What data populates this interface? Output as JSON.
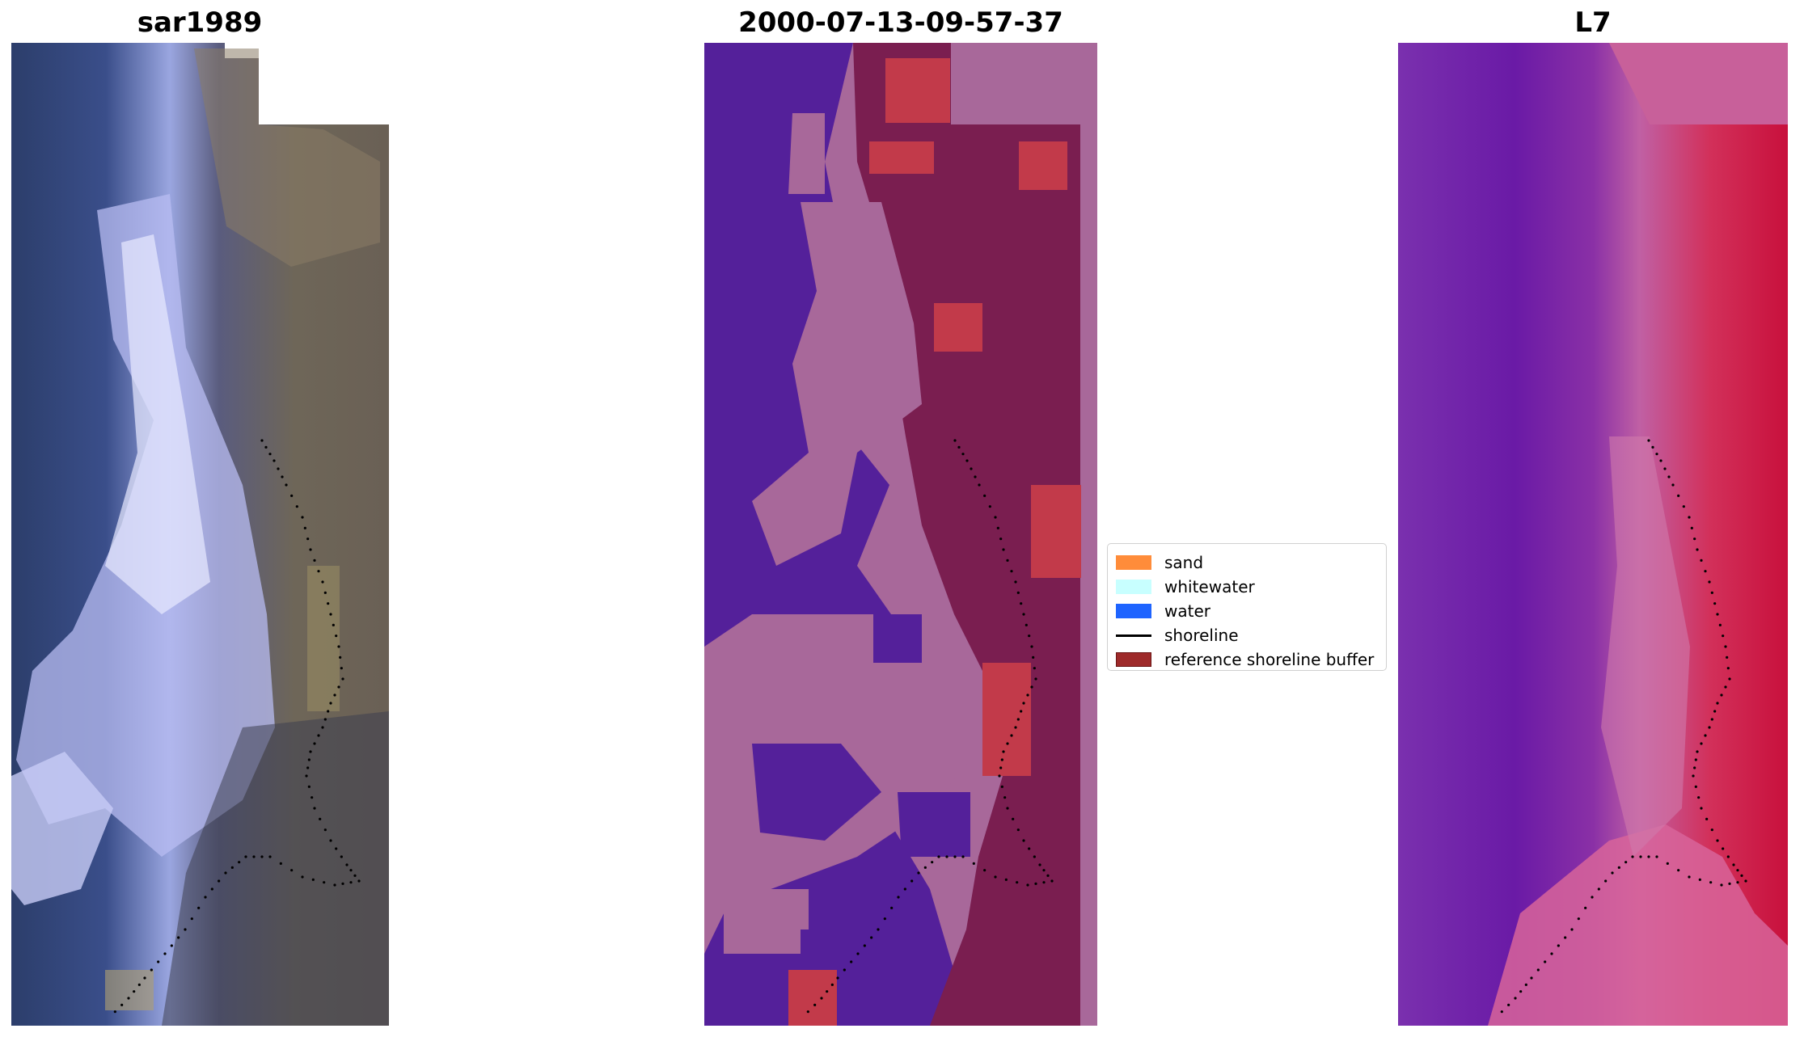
{
  "panels": [
    {
      "title": "sar1989"
    },
    {
      "title": "2000-07-13-09-57-37"
    },
    {
      "title": "L7"
    }
  ],
  "legend": {
    "items": [
      {
        "label": "sand",
        "color": "#ff8c3a",
        "kind": "patch"
      },
      {
        "label": "whitewater",
        "color": "#c8ffff",
        "kind": "patch"
      },
      {
        "label": "water",
        "color": "#1e64ff",
        "kind": "patch"
      },
      {
        "label": "shoreline",
        "color": "#000000",
        "kind": "line"
      },
      {
        "label": "reference shoreline buffer",
        "color": "#9e2a2a",
        "kind": "patch"
      }
    ]
  },
  "colors": {
    "sar_water": "#2c3e6b",
    "sar_white": "#e6eaff",
    "sar_land": "#6b6358",
    "class_water": "#54209a",
    "class_sand_overlay": "#a8689a",
    "class_buffer": "#7a1e50",
    "class_buffer_bright": "#c23a4a",
    "l7_water": "#6a1aa6",
    "l7_mid": "#b04aa0",
    "l7_land": "#c8103c",
    "shoreline": "#000000"
  }
}
